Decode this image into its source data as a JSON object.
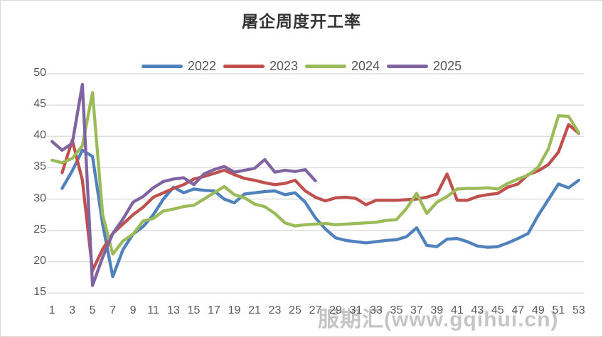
{
  "watermark": "服期汇(www.gqihui.cn)",
  "chart_data": {
    "type": "line",
    "title": "屠企周度开工率",
    "xlabel": "",
    "ylabel": "",
    "x": [
      1,
      2,
      3,
      4,
      5,
      6,
      7,
      8,
      9,
      10,
      11,
      12,
      13,
      14,
      15,
      16,
      17,
      18,
      19,
      20,
      21,
      22,
      23,
      24,
      25,
      26,
      27,
      28,
      29,
      30,
      31,
      32,
      33,
      34,
      35,
      36,
      37,
      38,
      39,
      40,
      41,
      42,
      43,
      44,
      45,
      46,
      47,
      48,
      49,
      50,
      51,
      52,
      53
    ],
    "x_tick_labels": [
      "1",
      "3",
      "5",
      "7",
      "9",
      "11",
      "13",
      "15",
      "17",
      "19",
      "21",
      "23",
      "25",
      "27",
      "29",
      "31",
      "33",
      "35",
      "37",
      "39",
      "41",
      "43",
      "45",
      "47",
      "49",
      "51",
      "53"
    ],
    "ylim": [
      15,
      50
    ],
    "y_ticks": [
      50,
      45,
      40,
      35,
      30,
      25,
      20,
      15
    ],
    "grid": "horizontal",
    "legend_position": "top-center",
    "series": [
      {
        "name": "2022",
        "color": "#4F81BD",
        "values": [
          null,
          31.7,
          34.5,
          37.8,
          36.8,
          26.0,
          17.6,
          21.9,
          24.4,
          25.6,
          27.5,
          30.0,
          31.9,
          31.0,
          31.6,
          31.4,
          31.3,
          30.0,
          29.4,
          30.8,
          31.0,
          31.2,
          31.3,
          30.7,
          31.0,
          29.5,
          27.0,
          25.2,
          23.8,
          23.4,
          23.2,
          23.0,
          23.2,
          23.4,
          23.5,
          24.0,
          25.4,
          22.6,
          22.4,
          23.6,
          23.7,
          23.2,
          22.5,
          22.3,
          22.4,
          23.0,
          23.7,
          24.5,
          27.4,
          29.9,
          32.4,
          31.8,
          33.0
        ]
      },
      {
        "name": "2023",
        "color": "#C0504D",
        "values": [
          null,
          34.2,
          39.4,
          33.0,
          18.6,
          22.0,
          24.5,
          26.0,
          27.5,
          28.7,
          30.3,
          31.0,
          31.7,
          32.3,
          33.2,
          33.6,
          34.1,
          34.6,
          33.9,
          33.3,
          33.0,
          32.6,
          32.3,
          32.5,
          33.0,
          31.3,
          30.3,
          29.7,
          30.2,
          30.3,
          30.1,
          29.1,
          29.8,
          29.8,
          29.8,
          29.9,
          30.0,
          30.3,
          30.8,
          34.0,
          29.8,
          29.8,
          30.4,
          30.7,
          30.9,
          31.9,
          32.4,
          33.9,
          34.5,
          35.5,
          37.5,
          41.9,
          40.5
        ]
      },
      {
        "name": "2024",
        "color": "#9BBB59",
        "values": [
          36.2,
          35.8,
          36.5,
          38.5,
          47.0,
          27.5,
          21.2,
          23.3,
          24.4,
          26.5,
          26.9,
          28.1,
          28.4,
          28.8,
          29.0,
          30.0,
          31.0,
          32.0,
          30.7,
          30.2,
          29.2,
          28.8,
          27.7,
          26.2,
          25.7,
          25.9,
          26.0,
          26.1,
          25.9,
          26.0,
          26.1,
          26.2,
          26.3,
          26.6,
          26.7,
          28.5,
          30.9,
          27.7,
          29.5,
          30.4,
          31.6,
          31.7,
          31.7,
          31.8,
          31.6,
          32.5,
          33.2,
          33.8,
          35.1,
          38.0,
          43.3,
          43.2,
          40.6
        ]
      },
      {
        "name": "2025",
        "color": "#8064A2",
        "values": [
          39.2,
          37.8,
          38.9,
          48.3,
          16.2,
          20.7,
          24.5,
          26.8,
          29.5,
          30.4,
          31.8,
          32.8,
          33.2,
          33.4,
          32.3,
          34.0,
          34.7,
          35.2,
          34.3,
          34.6,
          34.9,
          36.3,
          34.3,
          34.6,
          34.4,
          34.7,
          32.9,
          null,
          null,
          null,
          null,
          null,
          null,
          null,
          null,
          null,
          null,
          null,
          null,
          null,
          null,
          null,
          null,
          null,
          null,
          null,
          null,
          null,
          null,
          null,
          null,
          null,
          null
        ]
      }
    ]
  }
}
